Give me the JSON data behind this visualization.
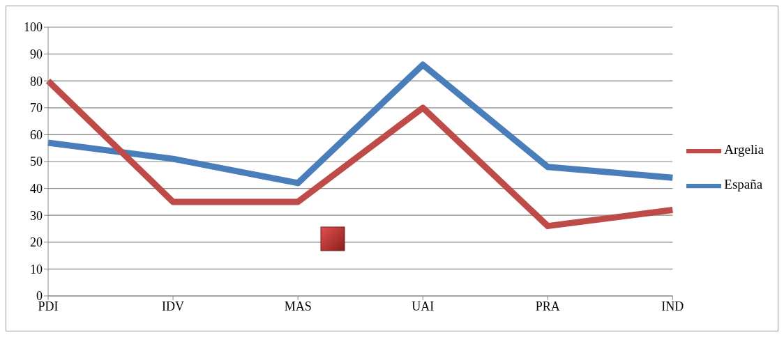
{
  "chart_data": {
    "type": "line",
    "categories": [
      "PDI",
      "IDV",
      "MAS",
      "UAI",
      "PRA",
      "IND"
    ],
    "series": [
      {
        "name": "España",
        "color": "#4a7ebb",
        "values": [
          57,
          51,
          42,
          86,
          48,
          44
        ]
      },
      {
        "name": "Argelia",
        "color": "#be4b48",
        "values": [
          80,
          35,
          35,
          70,
          26,
          32
        ]
      }
    ],
    "ylim": [
      0,
      100
    ],
    "yticks": [
      0,
      10,
      20,
      30,
      40,
      50,
      60,
      70,
      80,
      90,
      100
    ],
    "grid": "y",
    "legend": "right",
    "line_style": "solid"
  }
}
